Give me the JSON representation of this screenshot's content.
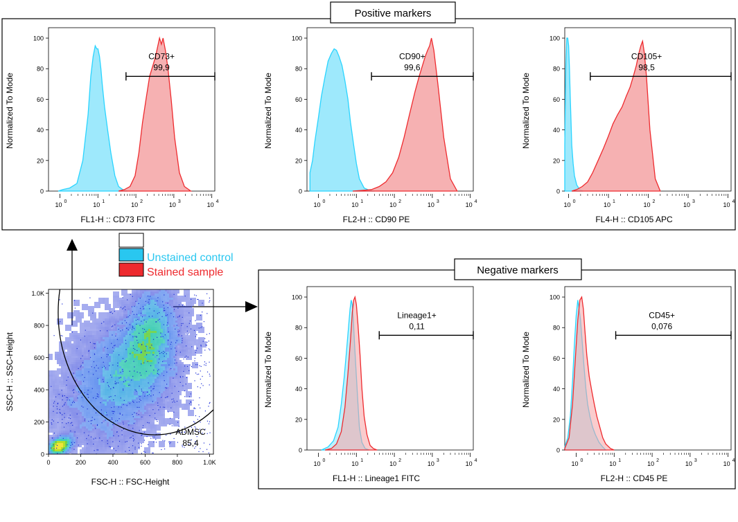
{
  "colors": {
    "unstained": "#29d4ff",
    "unstained_fill": "#8de5fb",
    "stained": "#ee2a2e",
    "stained_fill": "#f5a3a4",
    "overlap_fill": "#9fb7c9"
  },
  "legend": {
    "unstained_label": "Unstained control",
    "stained_label": "Stained sample",
    "unstained_color": "#29c7f0",
    "stained_color": "#ee2a2e"
  },
  "sections": {
    "positive_title": "Positive markers",
    "negative_title": "Negative markers"
  },
  "chart_data": [
    {
      "id": "cd73",
      "type": "area",
      "group": "positive",
      "xlabel": "FL1-H :: CD73 FITC",
      "ylabel": "Normalized To Mode",
      "xscale": "log",
      "xlim": [
        0.5,
        12000
      ],
      "ylim": [
        0,
        105
      ],
      "yticks": [
        "0",
        "20",
        "40",
        "60",
        "80",
        "100"
      ],
      "xticks_exp": [
        "0",
        "1",
        "2",
        "3",
        "4"
      ],
      "gate": {
        "label": "CD73+",
        "value": "99,9",
        "x_range": [
          55,
          12000
        ],
        "y": 75
      },
      "series": [
        {
          "name": "Unstained control",
          "x": [
            0.9,
            1.2,
            1.8,
            2.8,
            4,
            5.5,
            6.5,
            7.5,
            8.5,
            9.3,
            10,
            11,
            12,
            13,
            15,
            18,
            22,
            28,
            35,
            45,
            60
          ],
          "y": [
            0,
            1,
            2,
            5,
            20,
            50,
            75,
            88,
            95,
            93,
            93,
            88,
            80,
            70,
            55,
            40,
            25,
            10,
            3,
            1,
            0
          ]
        },
        {
          "name": "Stained sample",
          "x": [
            35,
            50,
            70,
            95,
            120,
            150,
            190,
            230,
            280,
            330,
            380,
            420,
            470,
            520,
            600,
            700,
            850,
            1050,
            1400,
            1900,
            2800
          ],
          "y": [
            0,
            1,
            3,
            10,
            25,
            45,
            62,
            75,
            82,
            88,
            95,
            100,
            96,
            100,
            92,
            80,
            60,
            35,
            12,
            3,
            0
          ]
        }
      ]
    },
    {
      "id": "cd90",
      "type": "area",
      "group": "positive",
      "xlabel": "FL2-H :: CD90 PE",
      "ylabel": "Normalized To Mode",
      "xscale": "log",
      "xlim": [
        0.5,
        12000
      ],
      "ylim": [
        0,
        105
      ],
      "yticks": [
        "0",
        "20",
        "40",
        "60",
        "80",
        "100"
      ],
      "xticks_exp": [
        "0",
        "1",
        "2",
        "3",
        "4"
      ],
      "gate": {
        "label": "CD90+",
        "value": "99,6",
        "x_range": [
          25,
          12000
        ],
        "y": 75
      },
      "series": [
        {
          "name": "Unstained control",
          "x": [
            0.6,
            0.7,
            0.8,
            1.0,
            1.2,
            1.5,
            1.8,
            2.2,
            2.6,
            3.0,
            3.5,
            4.2,
            5,
            6,
            7,
            8.5,
            10,
            12,
            16,
            22,
            30
          ],
          "y": [
            12,
            20,
            32,
            48,
            62,
            75,
            85,
            90,
            93,
            92,
            88,
            82,
            72,
            60,
            45,
            30,
            18,
            8,
            2,
            0.5,
            0
          ]
        },
        {
          "name": "Stained sample",
          "x": [
            8,
            15,
            25,
            40,
            60,
            90,
            130,
            180,
            250,
            350,
            450,
            550,
            650,
            750,
            850,
            950,
            1100,
            1400,
            2000,
            3000,
            4500
          ],
          "y": [
            0,
            0.5,
            1,
            3,
            6,
            12,
            22,
            35,
            50,
            65,
            75,
            82,
            88,
            92,
            95,
            100,
            92,
            70,
            35,
            8,
            0
          ]
        }
      ]
    },
    {
      "id": "cd105",
      "type": "area",
      "group": "positive",
      "xlabel": "FL4-H :: CD105 APC",
      "ylabel": "Normalized To Mode",
      "xscale": "log",
      "xlim": [
        0.8,
        12000
      ],
      "ylim": [
        0,
        105
      ],
      "yticks": [
        "0",
        "20",
        "40",
        "60",
        "80",
        "100"
      ],
      "xticks_exp": [
        "0",
        "1",
        "2",
        "3",
        "4"
      ],
      "gate": {
        "label": "CD105+",
        "value": "98,5",
        "x_range": [
          3.5,
          12000
        ],
        "y": 75
      },
      "series": [
        {
          "name": "Unstained control",
          "x": [
            0.8,
            0.85,
            0.9,
            0.95,
            1.0,
            1.05,
            1.1,
            1.15,
            1.2,
            1.3,
            1.4,
            1.6,
            1.9,
            2.3
          ],
          "y": [
            30,
            80,
            100,
            100,
            95,
            80,
            62,
            45,
            30,
            18,
            10,
            4,
            1,
            0
          ]
        },
        {
          "name": "Stained sample",
          "x": [
            1.2,
            1.6,
            2.2,
            3,
            4,
            5.5,
            7.5,
            10,
            13,
            17,
            22,
            28,
            35,
            42,
            50,
            58,
            65,
            72,
            80,
            90,
            110,
            150,
            200
          ],
          "y": [
            0,
            1,
            3,
            6,
            12,
            20,
            28,
            36,
            44,
            50,
            55,
            62,
            68,
            75,
            82,
            90,
            95,
            98,
            90,
            75,
            40,
            8,
            0
          ]
        }
      ]
    },
    {
      "id": "lineage1",
      "type": "area",
      "group": "negative",
      "xlabel": "FL1-H :: Lineage1 FITC",
      "ylabel": "Normalized To Mode",
      "xscale": "log",
      "xlim": [
        0.5,
        12000
      ],
      "ylim": [
        0,
        105
      ],
      "yticks": [
        "0",
        "20",
        "40",
        "60",
        "80",
        "100"
      ],
      "xticks_exp": [
        "0",
        "1",
        "2",
        "3",
        "4"
      ],
      "gate": {
        "label": "Lineage1+",
        "value": "0,11",
        "x_range": [
          40,
          12000
        ],
        "y": 75
      },
      "series": [
        {
          "name": "Unstained control",
          "x": [
            1.2,
            1.8,
            2.5,
            3.3,
            4.0,
            4.8,
            5.5,
            6.2,
            6.8,
            7.3,
            7.8,
            8.3,
            9.0,
            10,
            11,
            12,
            14,
            17,
            22
          ],
          "y": [
            0,
            2,
            6,
            15,
            30,
            48,
            65,
            80,
            92,
            98,
            95,
            85,
            68,
            48,
            30,
            15,
            5,
            1,
            0
          ]
        },
        {
          "name": "Stained sample",
          "x": [
            1.5,
            2.2,
            3.0,
            4.0,
            5.0,
            6.0,
            7.0,
            7.8,
            8.5,
            9.2,
            10,
            11,
            12.5,
            14,
            16,
            19,
            23,
            28,
            35
          ],
          "y": [
            0,
            1,
            4,
            12,
            28,
            50,
            72,
            90,
            98,
            100,
            95,
            82,
            62,
            40,
            22,
            10,
            3,
            1,
            0
          ]
        }
      ]
    },
    {
      "id": "cd45",
      "type": "area",
      "group": "negative",
      "xlabel": "FL2-H :: CD45 PE",
      "ylabel": "Normalized To Mode",
      "xscale": "log",
      "xlim": [
        0.5,
        12000
      ],
      "ylim": [
        0,
        105
      ],
      "yticks": [
        "0",
        "20",
        "40",
        "60",
        "80",
        "100"
      ],
      "xticks_exp": [
        "0",
        "1",
        "2",
        "3",
        "4"
      ],
      "gate": {
        "label": "CD45+",
        "value": "0,076",
        "x_range": [
          11,
          12000
        ],
        "y": 75
      },
      "series": [
        {
          "name": "Unstained control",
          "x": [
            0.5,
            0.6,
            0.7,
            0.8,
            0.9,
            1.0,
            1.1,
            1.2,
            1.3,
            1.45,
            1.6,
            1.8,
            2.0,
            2.3,
            2.7,
            3.2,
            4,
            5,
            6
          ],
          "y": [
            2,
            8,
            22,
            45,
            70,
            88,
            98,
            92,
            85,
            70,
            55,
            40,
            30,
            22,
            15,
            10,
            5,
            2,
            0
          ]
        },
        {
          "name": "Stained sample",
          "x": [
            0.5,
            0.65,
            0.8,
            0.95,
            1.1,
            1.25,
            1.4,
            1.55,
            1.7,
            1.9,
            2.2,
            2.6,
            3.0,
            3.5,
            4.2,
            5,
            6,
            8,
            10
          ],
          "y": [
            1,
            8,
            30,
            60,
            85,
            98,
            100,
            92,
            78,
            62,
            48,
            38,
            30,
            22,
            15,
            8,
            4,
            1,
            0
          ]
        }
      ]
    },
    {
      "id": "scatter",
      "type": "scatter",
      "xlabel": "FSC-H :: FSC-Height",
      "ylabel": "SSC-H :: SSC-Height",
      "xlim": [
        0,
        1024
      ],
      "ylim": [
        0,
        1024
      ],
      "xticks": [
        "0",
        "200",
        "400",
        "600",
        "800",
        "1.0K"
      ],
      "yticks": [
        "0",
        "200",
        "400",
        "600",
        "800",
        "1.0K"
      ],
      "xtick_values": [
        0,
        200,
        400,
        600,
        800,
        1000
      ],
      "ytick_values": [
        0,
        200,
        400,
        600,
        800,
        1000
      ],
      "gate": {
        "label": "ADMSC",
        "value": "85,4",
        "shape": "ellipse",
        "center": [
          660,
          880
        ],
        "radii": [
          600,
          760
        ]
      },
      "density_clusters": [
        {
          "center": [
            630,
            740
          ],
          "spread": [
            130,
            230
          ],
          "count": 4200
        },
        {
          "center": [
            560,
            560
          ],
          "spread": [
            200,
            240
          ],
          "count": 5200
        },
        {
          "center": [
            380,
            420
          ],
          "spread": [
            260,
            300
          ],
          "count": 4800
        },
        {
          "center": [
            70,
            50
          ],
          "spread": [
            60,
            40
          ],
          "count": 1400
        }
      ]
    }
  ]
}
